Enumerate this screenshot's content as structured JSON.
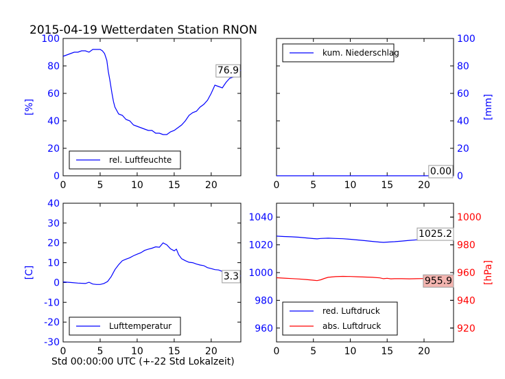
{
  "title": "2015-04-19 Wetterdaten Station RNON",
  "xlabel": "Std 00:00:00 UTC (+-22 Std Lokalzeit)",
  "colors": {
    "blue": "#0000ff",
    "red": "#ff0000",
    "axis": "#000000",
    "value_box_red": "#f4b5b0"
  },
  "chart_data": [
    {
      "type": "line",
      "title": "",
      "xlabel": "",
      "ylabel": "[%]",
      "xlim": [
        0,
        24
      ],
      "ylim": [
        0,
        100
      ],
      "xticks": [
        0,
        5,
        10,
        15,
        20
      ],
      "yticks": [
        0,
        20,
        40,
        60,
        80,
        100
      ],
      "legend": "lower-left",
      "series": [
        {
          "name": "rel. Luftfeuchte",
          "color": "#0000ff",
          "x": [
            0,
            0.5,
            1,
            1.5,
            2,
            2.5,
            3,
            3.5,
            4,
            4.5,
            5,
            5.3,
            5.6,
            5.9,
            6.1,
            6.3,
            6.6,
            6.8,
            7,
            7.5,
            8,
            8.5,
            9,
            9.5,
            10,
            10.5,
            11,
            11.5,
            12,
            12.5,
            13,
            13.5,
            14,
            14.5,
            15,
            15.5,
            16,
            16.5,
            17,
            17.5,
            18,
            18.5,
            19,
            19.5,
            20,
            20.5,
            21,
            21.5,
            22,
            22.5,
            23,
            23.5,
            24
          ],
          "y": [
            87,
            88,
            89,
            90,
            90,
            91,
            91,
            90,
            92,
            92,
            92,
            91,
            89,
            84,
            76,
            70,
            60,
            54,
            50,
            45,
            44,
            41,
            40,
            37,
            36,
            35,
            34,
            33,
            33,
            31,
            31,
            30,
            30,
            32,
            33,
            35,
            37,
            40,
            44,
            46,
            47,
            50,
            52,
            55,
            60,
            66,
            65,
            64,
            68,
            71,
            72,
            75,
            76.9
          ]
        }
      ],
      "value_label": "76.9"
    },
    {
      "type": "line",
      "title": "",
      "xlabel": "",
      "ylabel": "[mm]",
      "xlim": [
        0,
        24
      ],
      "ylim": [
        0,
        100
      ],
      "xticks": [
        0,
        5,
        10,
        15,
        20
      ],
      "yticks": [
        0,
        20,
        40,
        60,
        80,
        100
      ],
      "y_axis_side": "right",
      "legend": "top-left",
      "series": [
        {
          "name": "kum. Niederschlag",
          "color": "#0000ff",
          "x": [
            0,
            24
          ],
          "y": [
            0,
            0
          ]
        }
      ],
      "value_label": "0.00"
    },
    {
      "type": "line",
      "title": "",
      "xlabel": "Std 00:00:00 UTC (+-22 Std Lokalzeit)",
      "ylabel": "[C]",
      "xlim": [
        0,
        24
      ],
      "ylim": [
        -30,
        40
      ],
      "xticks": [
        0,
        5,
        10,
        15,
        20
      ],
      "yticks": [
        -30,
        -20,
        -10,
        0,
        10,
        20,
        30,
        40
      ],
      "legend": "lower-left",
      "series": [
        {
          "name": "Lufttemperatur",
          "color": "#0000ff",
          "x": [
            0,
            1,
            2,
            3,
            3.5,
            4,
            4.5,
            5,
            5.5,
            6,
            6.5,
            7,
            7.5,
            8,
            8.5,
            9,
            9.5,
            10,
            10.5,
            11,
            11.5,
            12,
            12.5,
            13,
            13.5,
            14,
            14.5,
            15,
            15.3,
            15.6,
            16,
            16.5,
            17,
            17.5,
            18,
            18.5,
            19,
            19.5,
            20,
            20.5,
            21,
            21.5,
            22,
            22.5,
            23,
            23.5,
            24
          ],
          "y": [
            0.3,
            0,
            -0.3,
            -0.5,
            0.1,
            -0.8,
            -1.0,
            -1.0,
            -0.5,
            0.5,
            3,
            6.5,
            9,
            11,
            11.8,
            12.5,
            13.5,
            14.3,
            15,
            16.2,
            16.8,
            17.3,
            18,
            17.8,
            20,
            19,
            17,
            16,
            16.8,
            14,
            12,
            11,
            10.2,
            10,
            9.3,
            8.8,
            8.5,
            7.5,
            7.0,
            6.5,
            6.3,
            5.6,
            5.1,
            4.9,
            4.5,
            3.8,
            3.3
          ]
        }
      ],
      "value_label": "3.3"
    },
    {
      "type": "line",
      "title": "",
      "xlabel": "",
      "ylabel": "[hPa]",
      "xlim": [
        0,
        24
      ],
      "ylim_left": [
        950,
        1050
      ],
      "ylim_right": [
        910,
        1010
      ],
      "xticks": [
        0,
        5,
        10,
        15,
        20
      ],
      "yticks_left": [
        960,
        980,
        1000,
        1020,
        1040
      ],
      "yticks_right": [
        920,
        940,
        960,
        980,
        1000
      ],
      "legend": "lower-left",
      "series": [
        {
          "name": "red. Luftdruck",
          "color": "#0000ff",
          "axis": "left",
          "x": [
            0,
            1,
            2,
            3,
            4,
            5,
            5.5,
            6,
            7,
            8,
            9,
            10,
            11,
            12,
            13,
            14,
            14.5,
            15,
            16,
            17,
            18,
            19,
            20,
            21,
            22,
            23,
            24
          ],
          "y": [
            1026.3,
            1026,
            1025.8,
            1025.5,
            1025,
            1024.5,
            1024.3,
            1024.6,
            1024.8,
            1024.6,
            1024.4,
            1024.0,
            1023.5,
            1023,
            1022.5,
            1022,
            1021.8,
            1022,
            1022.3,
            1022.7,
            1023.2,
            1023.6,
            1024.0,
            1024.3,
            1024.6,
            1024.9,
            1025.2
          ]
        },
        {
          "name": "abs. Luftdruck",
          "color": "#ff0000",
          "axis": "right",
          "x": [
            0,
            1,
            2,
            3,
            4,
            5,
            5.5,
            6,
            6.5,
            7,
            8,
            9,
            10,
            11,
            12,
            13,
            14,
            14.5,
            15,
            15.5,
            16,
            17,
            18,
            19,
            20,
            21,
            22,
            23,
            24
          ],
          "y": [
            956.3,
            956,
            955.7,
            955.4,
            955,
            954.5,
            954.2,
            954.8,
            955.8,
            956.6,
            957.1,
            957.3,
            957.2,
            957.0,
            956.8,
            956.6,
            956.2,
            955.6,
            955.9,
            955.5,
            955.6,
            955.6,
            955.5,
            955.6,
            955.7,
            955.8,
            955.9,
            955.9,
            955.9
          ]
        }
      ],
      "value_labels": [
        "1025.2",
        "955.9"
      ]
    }
  ]
}
